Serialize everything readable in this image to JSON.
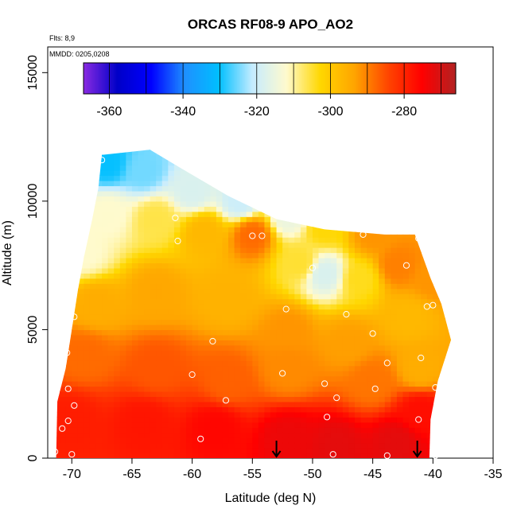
{
  "chart_data": {
    "type": "heatmap",
    "title": "ORCAS RF08-9 APO_AO2",
    "annotations": [
      "Flts: 8,9",
      "MMDD: 0205,0208"
    ],
    "xlabel": "Latitude (deg N)",
    "ylabel": "Altitude (m)",
    "xlim": [
      -72,
      -35
    ],
    "ylim": [
      0,
      16000
    ],
    "x_ticks": [
      -70,
      -65,
      -60,
      -55,
      -50,
      -45,
      -40,
      -35
    ],
    "x_tick_labels": [
      "-70",
      "-65",
      "-60",
      "-55",
      "-50",
      "-45",
      "-40",
      "-35"
    ],
    "y_ticks": [
      0,
      5000,
      10000,
      15000
    ],
    "y_tick_labels": [
      "0",
      "5000",
      "10000",
      "15000"
    ],
    "colorbar": {
      "range": [
        -367,
        -266
      ],
      "ticks": [
        -360,
        -340,
        -320,
        -300,
        -280
      ],
      "tick_labels": [
        "-360",
        "-340",
        "-320",
        "-300",
        "-280"
      ],
      "bin_edges": [
        -367,
        -360,
        -350,
        -340,
        -330,
        -320,
        -310,
        -300,
        -290,
        -280,
        -270,
        -266
      ],
      "colors": [
        "#8a2be2",
        "#0000c8",
        "#0000ff",
        "#1e90ff",
        "#00bfff",
        "#c6ecff",
        "#fffacd",
        "#ffd700",
        "#ffa500",
        "#ff4500",
        "#ff0000",
        "#b22222"
      ]
    },
    "grid": false,
    "legend": "colorbar-top",
    "outline": [
      [
        -71.3,
        0
      ],
      [
        -71.2,
        2200
      ],
      [
        -70.5,
        3500
      ],
      [
        -70.0,
        5000
      ],
      [
        -69.5,
        6500
      ],
      [
        -69.0,
        7800
      ],
      [
        -68.3,
        9300
      ],
      [
        -67.8,
        10500
      ],
      [
        -67.5,
        11800
      ],
      [
        -63.5,
        12000
      ],
      [
        -61,
        11300
      ],
      [
        -57,
        10200
      ],
      [
        -53,
        9300
      ],
      [
        -49,
        8900
      ],
      [
        -44,
        8700
      ],
      [
        -41.5,
        8700
      ],
      [
        -40.2,
        7000
      ],
      [
        -39.3,
        6000
      ],
      [
        -38.5,
        4600
      ],
      [
        -39.6,
        3000
      ],
      [
        -40.2,
        1500
      ],
      [
        -40.3,
        0
      ]
    ],
    "field_points": [
      {
        "lat": -67,
        "alt": 11500,
        "value": -330
      },
      {
        "lat": -64,
        "alt": 11200,
        "value": -325
      },
      {
        "lat": -60,
        "alt": 10400,
        "value": -318
      },
      {
        "lat": -56,
        "alt": 10000,
        "value": -320
      },
      {
        "lat": -52,
        "alt": 9400,
        "value": -315
      },
      {
        "lat": -49,
        "alt": 9000,
        "value": -303
      },
      {
        "lat": -45,
        "alt": 8700,
        "value": -292
      },
      {
        "lat": -67,
        "alt": 9500,
        "value": -312
      },
      {
        "lat": -63,
        "alt": 9300,
        "value": -306
      },
      {
        "lat": -59,
        "alt": 8800,
        "value": -297
      },
      {
        "lat": -55,
        "alt": 8700,
        "value": -288
      },
      {
        "lat": -51,
        "alt": 7600,
        "value": -305
      },
      {
        "lat": -49,
        "alt": 7200,
        "value": -318
      },
      {
        "lat": -46,
        "alt": 7000,
        "value": -304
      },
      {
        "lat": -43,
        "alt": 7500,
        "value": -290
      },
      {
        "lat": -69,
        "alt": 8000,
        "value": -312
      },
      {
        "lat": -68,
        "alt": 6000,
        "value": -295
      },
      {
        "lat": -63,
        "alt": 6500,
        "value": -294
      },
      {
        "lat": -57,
        "alt": 6300,
        "value": -296
      },
      {
        "lat": -52,
        "alt": 5000,
        "value": -292
      },
      {
        "lat": -47,
        "alt": 4500,
        "value": -293
      },
      {
        "lat": -42,
        "alt": 5500,
        "value": -297
      },
      {
        "lat": -40,
        "alt": 7000,
        "value": -292
      },
      {
        "lat": -69,
        "alt": 4000,
        "value": -288
      },
      {
        "lat": -63,
        "alt": 3500,
        "value": -286
      },
      {
        "lat": -57,
        "alt": 3000,
        "value": -287
      },
      {
        "lat": -52,
        "alt": 3500,
        "value": -291
      },
      {
        "lat": -45,
        "alt": 3000,
        "value": -289
      },
      {
        "lat": -41,
        "alt": 3500,
        "value": -295
      },
      {
        "lat": -70,
        "alt": 1500,
        "value": -279
      },
      {
        "lat": -64,
        "alt": 1400,
        "value": -278
      },
      {
        "lat": -58,
        "alt": 1200,
        "value": -276
      },
      {
        "lat": -52,
        "alt": 800,
        "value": -273
      },
      {
        "lat": -48,
        "alt": 500,
        "value": -272
      },
      {
        "lat": -43,
        "alt": 600,
        "value": -272
      },
      {
        "lat": -41,
        "alt": 1800,
        "value": -277
      }
    ],
    "sample_points": [
      [
        -67.5,
        11600
      ],
      [
        -61.4,
        9350
      ],
      [
        -61.2,
        8450
      ],
      [
        -55.0,
        8650
      ],
      [
        -54.2,
        8650
      ],
      [
        -50.0,
        7400
      ],
      [
        -45.8,
        8700
      ],
      [
        -41.2,
        8550
      ],
      [
        -42.2,
        7500
      ],
      [
        -40.5,
        5900
      ],
      [
        -40.0,
        5950
      ],
      [
        -52.2,
        5800
      ],
      [
        -47.2,
        5600
      ],
      [
        -45.0,
        4850
      ],
      [
        -58.3,
        4550
      ],
      [
        -69.8,
        5500
      ],
      [
        -70.4,
        4100
      ],
      [
        -70.3,
        2700
      ],
      [
        -69.8,
        2050
      ],
      [
        -60.0,
        3250
      ],
      [
        -52.5,
        3300
      ],
      [
        -43.8,
        3700
      ],
      [
        -41.0,
        3900
      ],
      [
        -39.8,
        2750
      ],
      [
        -49.0,
        2900
      ],
      [
        -57.2,
        2250
      ],
      [
        -48.0,
        2350
      ],
      [
        -44.8,
        2700
      ],
      [
        -70.3,
        1450
      ],
      [
        -70.8,
        1150
      ],
      [
        -48.8,
        1600
      ],
      [
        -41.2,
        1500
      ],
      [
        -59.3,
        750
      ],
      [
        -71.4,
        250
      ],
      [
        -70.0,
        150
      ],
      [
        -48.3,
        150
      ],
      [
        -43.8,
        100
      ],
      [
        -39.8,
        100
      ]
    ],
    "arrows_at_latitude": [
      -53.0,
      -41.3
    ]
  }
}
